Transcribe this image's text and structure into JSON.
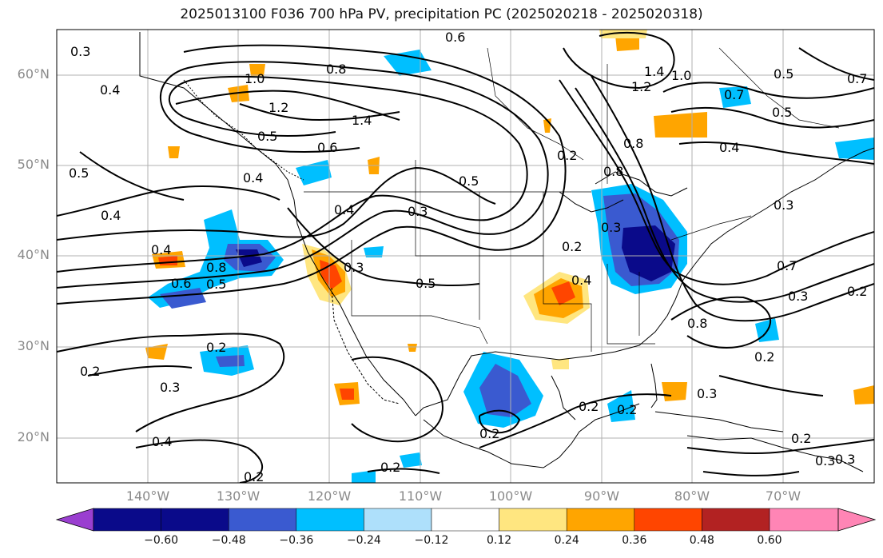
{
  "title": "2025013100 F036 700 hPa PV, precipitation PC (2025020218 - 2025020318)",
  "latitude_labels": [
    "60°N",
    "50°N",
    "40°N",
    "30°N",
    "20°N"
  ],
  "longitude_labels": [
    "140°W",
    "130°W",
    "120°W",
    "110°W",
    "100°W",
    "90°W",
    "80°W",
    "70°W"
  ],
  "colorbar": {
    "ticks": [
      "−0.60",
      "−0.48",
      "−0.36",
      "−0.24",
      "−0.12",
      "0.12",
      "0.24",
      "0.36",
      "0.48",
      "0.60"
    ],
    "colors": [
      "#9a3fd0",
      "#0a0a8a",
      "#3a5ad0",
      "#00bfff",
      "#aee0fb",
      "#ffffff",
      "#ffe680",
      "#ffa500",
      "#ff4500",
      "#b22222",
      "#ff85b5"
    ]
  },
  "contour_labels": [
    "0.3",
    "0.4",
    "1.0",
    "0.8",
    "1.2",
    "1.4",
    "0.6",
    "0.5",
    "0.4",
    "0.6",
    "0.5",
    "0.4",
    "0.5",
    "0.4",
    "0.3",
    "0.2",
    "0.8",
    "0.8",
    "1.4",
    "1.2",
    "1.0",
    "0.5",
    "0.7",
    "0.5",
    "0.4",
    "0.7",
    "0.8",
    "0.6",
    "0.5",
    "0.4",
    "0.3",
    "0.5",
    "0.2",
    "0.3",
    "0.4",
    "0.7",
    "0.3",
    "0.2",
    "0.8",
    "0.2",
    "0.2",
    "0.3",
    "0.3",
    "0.2",
    "0.2",
    "0.2",
    "0.2",
    "0.3",
    "0.2",
    "0.2",
    "0.3",
    "0.4",
    "0.2",
    "0.3"
  ],
  "colors": {
    "axis": "#000000",
    "grid": "#b0b0b0",
    "contour": "#000000"
  }
}
